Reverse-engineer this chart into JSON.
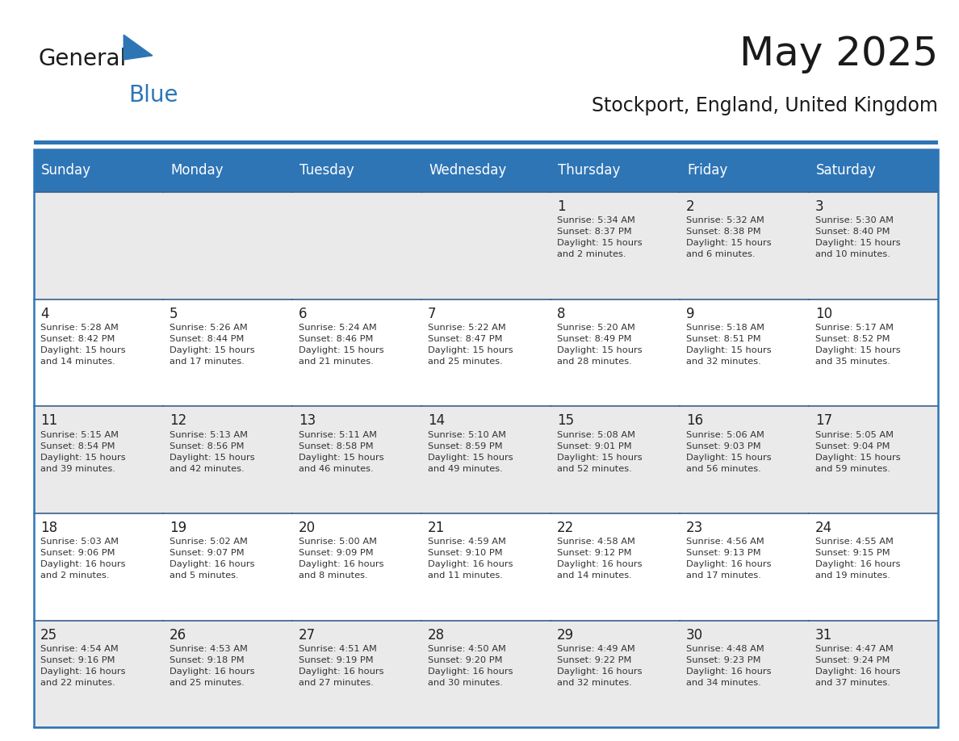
{
  "title": "May 2025",
  "subtitle": "Stockport, England, United Kingdom",
  "header_bg": "#2E75B6",
  "header_text_color": "#FFFFFF",
  "day_names": [
    "Sunday",
    "Monday",
    "Tuesday",
    "Wednesday",
    "Thursday",
    "Friday",
    "Saturday"
  ],
  "row_bgs": [
    "#EAEAEA",
    "#FFFFFF",
    "#EAEAEA",
    "#FFFFFF",
    "#EAEAEA"
  ],
  "border_color": "#2E75B6",
  "cell_border_color": "#3A5F8A",
  "text_color": "#333333",
  "calendar": [
    [
      {
        "day": 0,
        "text": ""
      },
      {
        "day": 0,
        "text": ""
      },
      {
        "day": 0,
        "text": ""
      },
      {
        "day": 0,
        "text": ""
      },
      {
        "day": 1,
        "text": "Sunrise: 5:34 AM\nSunset: 8:37 PM\nDaylight: 15 hours\nand 2 minutes."
      },
      {
        "day": 2,
        "text": "Sunrise: 5:32 AM\nSunset: 8:38 PM\nDaylight: 15 hours\nand 6 minutes."
      },
      {
        "day": 3,
        "text": "Sunrise: 5:30 AM\nSunset: 8:40 PM\nDaylight: 15 hours\nand 10 minutes."
      }
    ],
    [
      {
        "day": 4,
        "text": "Sunrise: 5:28 AM\nSunset: 8:42 PM\nDaylight: 15 hours\nand 14 minutes."
      },
      {
        "day": 5,
        "text": "Sunrise: 5:26 AM\nSunset: 8:44 PM\nDaylight: 15 hours\nand 17 minutes."
      },
      {
        "day": 6,
        "text": "Sunrise: 5:24 AM\nSunset: 8:46 PM\nDaylight: 15 hours\nand 21 minutes."
      },
      {
        "day": 7,
        "text": "Sunrise: 5:22 AM\nSunset: 8:47 PM\nDaylight: 15 hours\nand 25 minutes."
      },
      {
        "day": 8,
        "text": "Sunrise: 5:20 AM\nSunset: 8:49 PM\nDaylight: 15 hours\nand 28 minutes."
      },
      {
        "day": 9,
        "text": "Sunrise: 5:18 AM\nSunset: 8:51 PM\nDaylight: 15 hours\nand 32 minutes."
      },
      {
        "day": 10,
        "text": "Sunrise: 5:17 AM\nSunset: 8:52 PM\nDaylight: 15 hours\nand 35 minutes."
      }
    ],
    [
      {
        "day": 11,
        "text": "Sunrise: 5:15 AM\nSunset: 8:54 PM\nDaylight: 15 hours\nand 39 minutes."
      },
      {
        "day": 12,
        "text": "Sunrise: 5:13 AM\nSunset: 8:56 PM\nDaylight: 15 hours\nand 42 minutes."
      },
      {
        "day": 13,
        "text": "Sunrise: 5:11 AM\nSunset: 8:58 PM\nDaylight: 15 hours\nand 46 minutes."
      },
      {
        "day": 14,
        "text": "Sunrise: 5:10 AM\nSunset: 8:59 PM\nDaylight: 15 hours\nand 49 minutes."
      },
      {
        "day": 15,
        "text": "Sunrise: 5:08 AM\nSunset: 9:01 PM\nDaylight: 15 hours\nand 52 minutes."
      },
      {
        "day": 16,
        "text": "Sunrise: 5:06 AM\nSunset: 9:03 PM\nDaylight: 15 hours\nand 56 minutes."
      },
      {
        "day": 17,
        "text": "Sunrise: 5:05 AM\nSunset: 9:04 PM\nDaylight: 15 hours\nand 59 minutes."
      }
    ],
    [
      {
        "day": 18,
        "text": "Sunrise: 5:03 AM\nSunset: 9:06 PM\nDaylight: 16 hours\nand 2 minutes."
      },
      {
        "day": 19,
        "text": "Sunrise: 5:02 AM\nSunset: 9:07 PM\nDaylight: 16 hours\nand 5 minutes."
      },
      {
        "day": 20,
        "text": "Sunrise: 5:00 AM\nSunset: 9:09 PM\nDaylight: 16 hours\nand 8 minutes."
      },
      {
        "day": 21,
        "text": "Sunrise: 4:59 AM\nSunset: 9:10 PM\nDaylight: 16 hours\nand 11 minutes."
      },
      {
        "day": 22,
        "text": "Sunrise: 4:58 AM\nSunset: 9:12 PM\nDaylight: 16 hours\nand 14 minutes."
      },
      {
        "day": 23,
        "text": "Sunrise: 4:56 AM\nSunset: 9:13 PM\nDaylight: 16 hours\nand 17 minutes."
      },
      {
        "day": 24,
        "text": "Sunrise: 4:55 AM\nSunset: 9:15 PM\nDaylight: 16 hours\nand 19 minutes."
      }
    ],
    [
      {
        "day": 25,
        "text": "Sunrise: 4:54 AM\nSunset: 9:16 PM\nDaylight: 16 hours\nand 22 minutes."
      },
      {
        "day": 26,
        "text": "Sunrise: 4:53 AM\nSunset: 9:18 PM\nDaylight: 16 hours\nand 25 minutes."
      },
      {
        "day": 27,
        "text": "Sunrise: 4:51 AM\nSunset: 9:19 PM\nDaylight: 16 hours\nand 27 minutes."
      },
      {
        "day": 28,
        "text": "Sunrise: 4:50 AM\nSunset: 9:20 PM\nDaylight: 16 hours\nand 30 minutes."
      },
      {
        "day": 29,
        "text": "Sunrise: 4:49 AM\nSunset: 9:22 PM\nDaylight: 16 hours\nand 32 minutes."
      },
      {
        "day": 30,
        "text": "Sunrise: 4:48 AM\nSunset: 9:23 PM\nDaylight: 16 hours\nand 34 minutes."
      },
      {
        "day": 31,
        "text": "Sunrise: 4:47 AM\nSunset: 9:24 PM\nDaylight: 16 hours\nand 37 minutes."
      }
    ]
  ],
  "logo_text_general": "General",
  "logo_text_blue": "Blue",
  "logo_color_general": "#1a1a1a",
  "logo_color_blue": "#2E75B6",
  "logo_triangle_color": "#2E75B6",
  "fig_width": 11.88,
  "fig_height": 9.18,
  "dpi": 100
}
